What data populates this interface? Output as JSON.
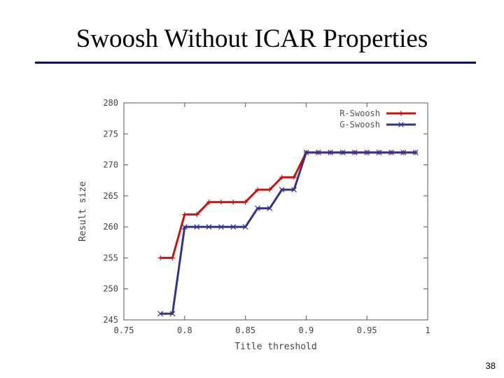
{
  "slide": {
    "title": "Swoosh Without ICAR Properties",
    "page_number": "38"
  },
  "colors": {
    "title_rule": "#0d0d5a",
    "r_swoosh": "#cc1111",
    "g_swoosh": "#333388"
  },
  "chart_data": {
    "type": "line",
    "title": "",
    "xlabel": "Title threshold",
    "ylabel": "Result size",
    "xlim": [
      0.75,
      1.0
    ],
    "ylim": [
      245,
      280
    ],
    "x_ticks": [
      "0.75",
      "0.8",
      "0.85",
      "0.9",
      "0.95",
      "1"
    ],
    "y_ticks": [
      "245",
      "250",
      "255",
      "260",
      "265",
      "270",
      "275",
      "280"
    ],
    "grid": false,
    "legend_position": "top-right",
    "x": [
      0.78,
      0.79,
      0.8,
      0.81,
      0.82,
      0.83,
      0.84,
      0.85,
      0.86,
      0.87,
      0.88,
      0.89,
      0.9,
      0.91,
      0.92,
      0.93,
      0.94,
      0.95,
      0.96,
      0.97,
      0.98,
      0.99
    ],
    "series": [
      {
        "name": "R-Swoosh",
        "marker": "+",
        "color": "#cc1111",
        "values": [
          255,
          255,
          262,
          262,
          264,
          264,
          264,
          264,
          266,
          266,
          268,
          268,
          272,
          272,
          272,
          272,
          272,
          272,
          272,
          272,
          272,
          272
        ]
      },
      {
        "name": "G-Swoosh",
        "marker": "x",
        "color": "#333388",
        "values": [
          246,
          246,
          260,
          260,
          260,
          260,
          260,
          260,
          263,
          263,
          266,
          266,
          272,
          272,
          272,
          272,
          272,
          272,
          272,
          272,
          272,
          272
        ]
      }
    ]
  }
}
